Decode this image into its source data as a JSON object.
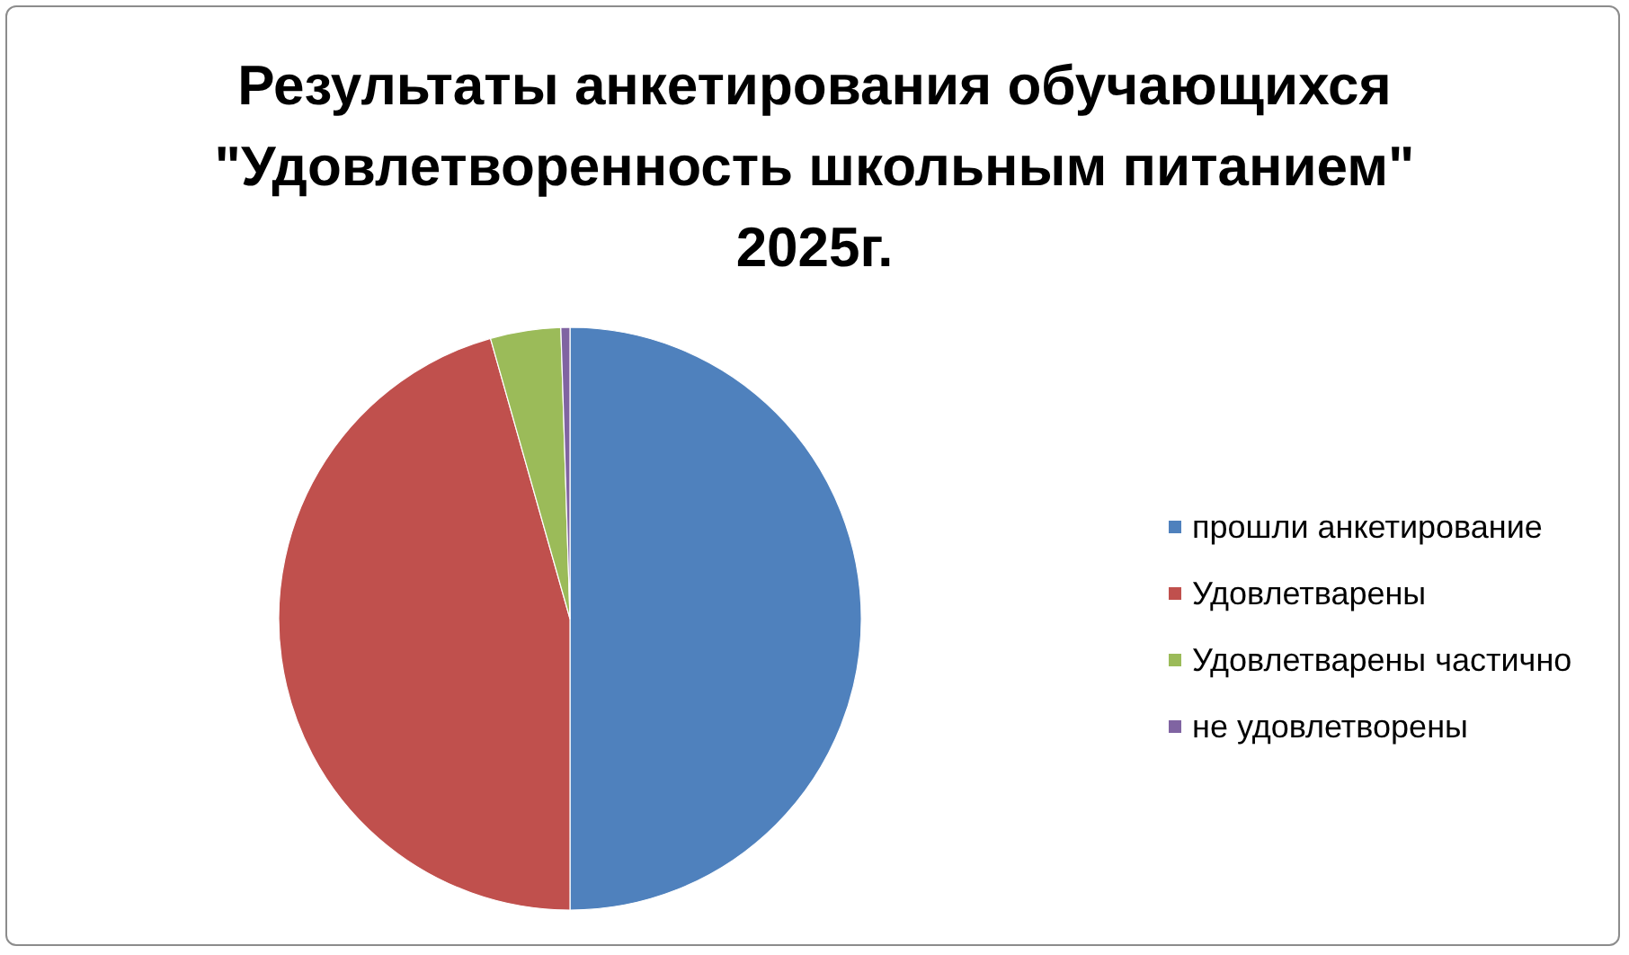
{
  "chart_data": {
    "type": "pie",
    "title": "Результаты анкетирования обучающихся \"Удовлетворенность школьным питанием\" 2025г.",
    "categories": [
      "прошли анкетирование",
      "Удовлетварены",
      "Удовлетварены частично",
      "не удовлетворены"
    ],
    "values": [
      50,
      45.6,
      3.9,
      0.5
    ],
    "colors": [
      "#4f81bd",
      "#c0504d",
      "#9bbb59",
      "#8064a2"
    ],
    "legend": "right"
  }
}
